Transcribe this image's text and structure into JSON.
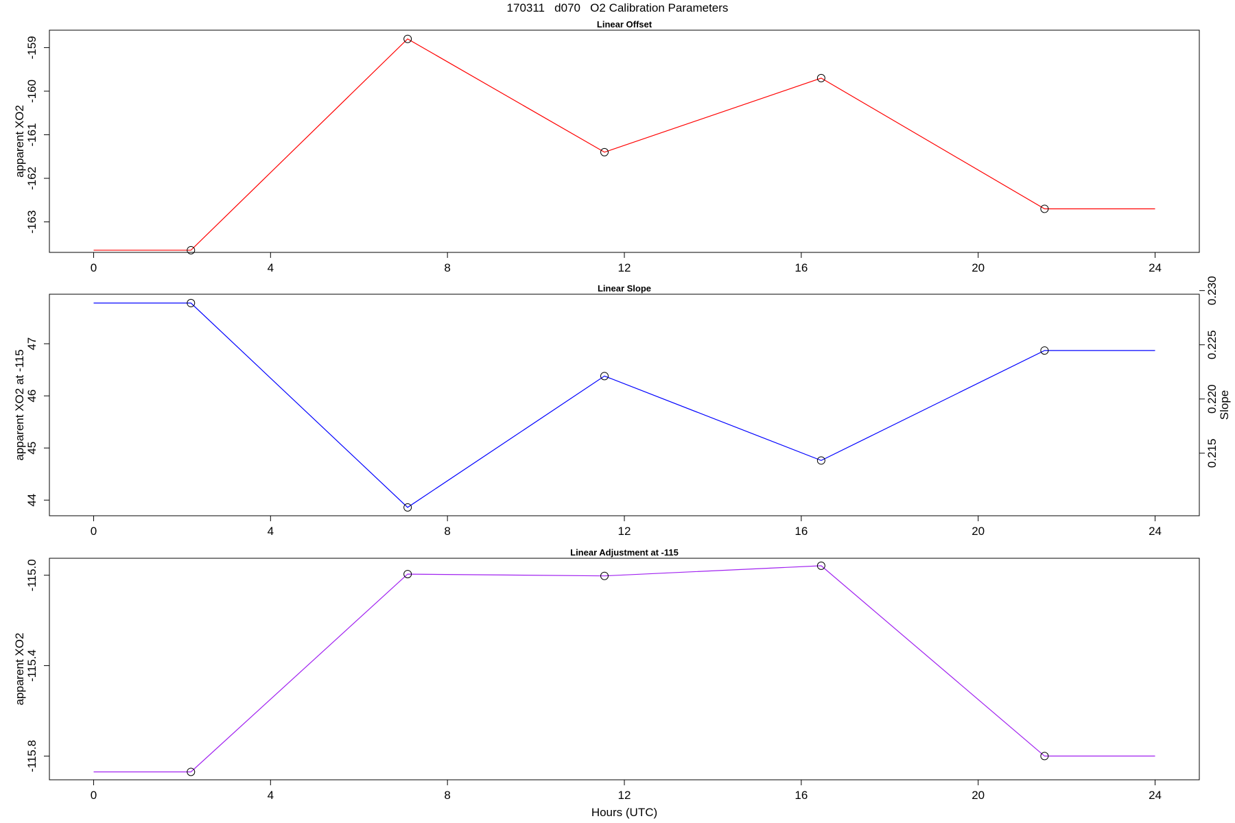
{
  "title": "170311   d070   O2 Calibration Parameters",
  "xlabel": "Hours (UTC)",
  "chart_data": [
    {
      "type": "line",
      "title": "Linear Offset",
      "xlabel": "",
      "ylabel": "apparent XO2",
      "xlim": [
        -1.0,
        25.0
      ],
      "ylim": [
        -163.7,
        -158.6
      ],
      "xticks": [
        0,
        4,
        8,
        12,
        16,
        20,
        24
      ],
      "yticks": [
        -163,
        -162,
        -161,
        -160,
        -159
      ],
      "color": "#ff0000",
      "series": [
        {
          "x": [
            0,
            2.2,
            7.1,
            11.55,
            16.45,
            21.5,
            24
          ],
          "y": [
            -163.65,
            -163.65,
            -158.8,
            -161.4,
            -159.7,
            -162.7,
            -162.7
          ],
          "markers": [
            false,
            true,
            true,
            true,
            true,
            true,
            false
          ]
        }
      ]
    },
    {
      "type": "line",
      "title": "Linear Slope",
      "xlabel": "",
      "ylabel": "apparent XO2 at -115",
      "ylabel_right": "Slope",
      "xlim": [
        -1.0,
        25.0
      ],
      "ylim": [
        43.7,
        47.95
      ],
      "xticks": [
        0,
        4,
        8,
        12,
        16,
        20,
        24
      ],
      "yticks": [
        44,
        45,
        46,
        47
      ],
      "yticks_right": [
        "0.215",
        "0.220",
        "0.225",
        "0.230"
      ],
      "yticks_right_values": [
        44.9,
        45.94,
        46.98,
        48.02
      ],
      "color": "#0000ff",
      "series": [
        {
          "x": [
            0,
            2.2,
            7.1,
            11.55,
            16.45,
            21.5,
            24
          ],
          "y": [
            47.78,
            47.78,
            43.86,
            46.38,
            44.76,
            46.87,
            46.87
          ],
          "markers": [
            false,
            true,
            true,
            true,
            true,
            true,
            false
          ]
        }
      ]
    },
    {
      "type": "line",
      "title": "Linear Adjustment at -115",
      "xlabel": "Hours (UTC)",
      "ylabel": "apparent XO2",
      "xlim": [
        -1.0,
        25.0
      ],
      "ylim": [
        -115.905,
        -114.925
      ],
      "xticks": [
        0,
        4,
        8,
        12,
        16,
        20,
        24
      ],
      "yticks": [
        "-115.8",
        "-115.4",
        "-115.0"
      ],
      "yticks_values": [
        -115.8,
        -115.4,
        -115.0
      ],
      "color": "#a020f0",
      "series": [
        {
          "x": [
            0,
            2.2,
            7.1,
            11.55,
            16.45,
            21.5,
            24
          ],
          "y": [
            -115.87,
            -115.87,
            -114.995,
            -115.003,
            -114.958,
            -115.8,
            -115.8
          ],
          "markers": [
            false,
            true,
            true,
            true,
            true,
            true,
            false
          ]
        }
      ]
    }
  ]
}
